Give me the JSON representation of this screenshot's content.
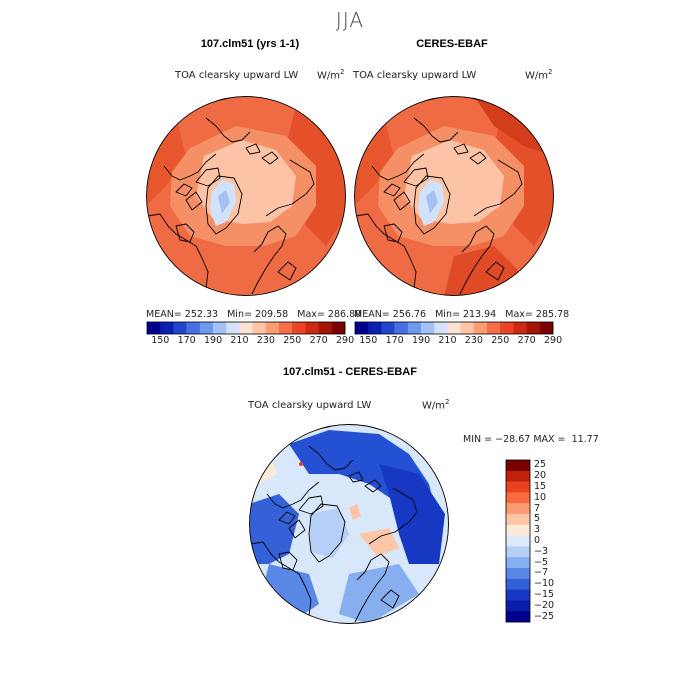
{
  "season": "JJA",
  "panels": [
    {
      "title": "107.clm51 (yrs 1-1)",
      "variable": "TOA clearsky upward LW",
      "units_base": "W/m",
      "units_exp": "2",
      "mean_label": "MEAN=",
      "mean": "252.33",
      "min_label": "Min=",
      "min": "209.58",
      "max_label": "Max=",
      "max": "286.80"
    },
    {
      "title": "CERES-EBAF",
      "variable": "TOA clearsky upward LW",
      "units_base": "W/m",
      "units_exp": "2",
      "mean_label": "MEAN=",
      "mean": "256.76",
      "min_label": "Min=",
      "min": "213.94",
      "max_label": "Max=",
      "max": "285.78"
    }
  ],
  "abs_colorbar": {
    "colors": [
      "#00008f",
      "#0d1fb0",
      "#2145d0",
      "#4470e0",
      "#7098ec",
      "#a4c0f4",
      "#d2e2fa",
      "#fbe3d3",
      "#fcc3a6",
      "#fb9a73",
      "#f56e48",
      "#e94424",
      "#cc2a12",
      "#a51408",
      "#7a0000"
    ],
    "tick_labels": [
      "150",
      "170",
      "190",
      "210",
      "230",
      "250",
      "270",
      "290"
    ]
  },
  "diff_panel": {
    "title": "107.clm51 - CERES-EBAF",
    "variable": "TOA clearsky upward LW",
    "units_base": "W/m",
    "units_exp": "2",
    "min_label": "MIN =",
    "min": "−28.67",
    "max_label": "MAX =",
    "max": "11.77"
  },
  "diff_colorbar": {
    "colors": [
      "#7a0000",
      "#c0200c",
      "#e8431f",
      "#f86b3f",
      "#fc9c72",
      "#fdc6a7",
      "#feead9",
      "#dde9fb",
      "#b6cff7",
      "#87aeef",
      "#5a88e6",
      "#335fd8",
      "#1738c2",
      "#081ea8",
      "#00008c"
    ],
    "tick_labels": [
      "25",
      "20",
      "15",
      "10",
      "7",
      "5",
      "3",
      "0",
      "−3",
      "−5",
      "−7",
      "−10",
      "−15",
      "−20",
      "−25"
    ]
  }
}
